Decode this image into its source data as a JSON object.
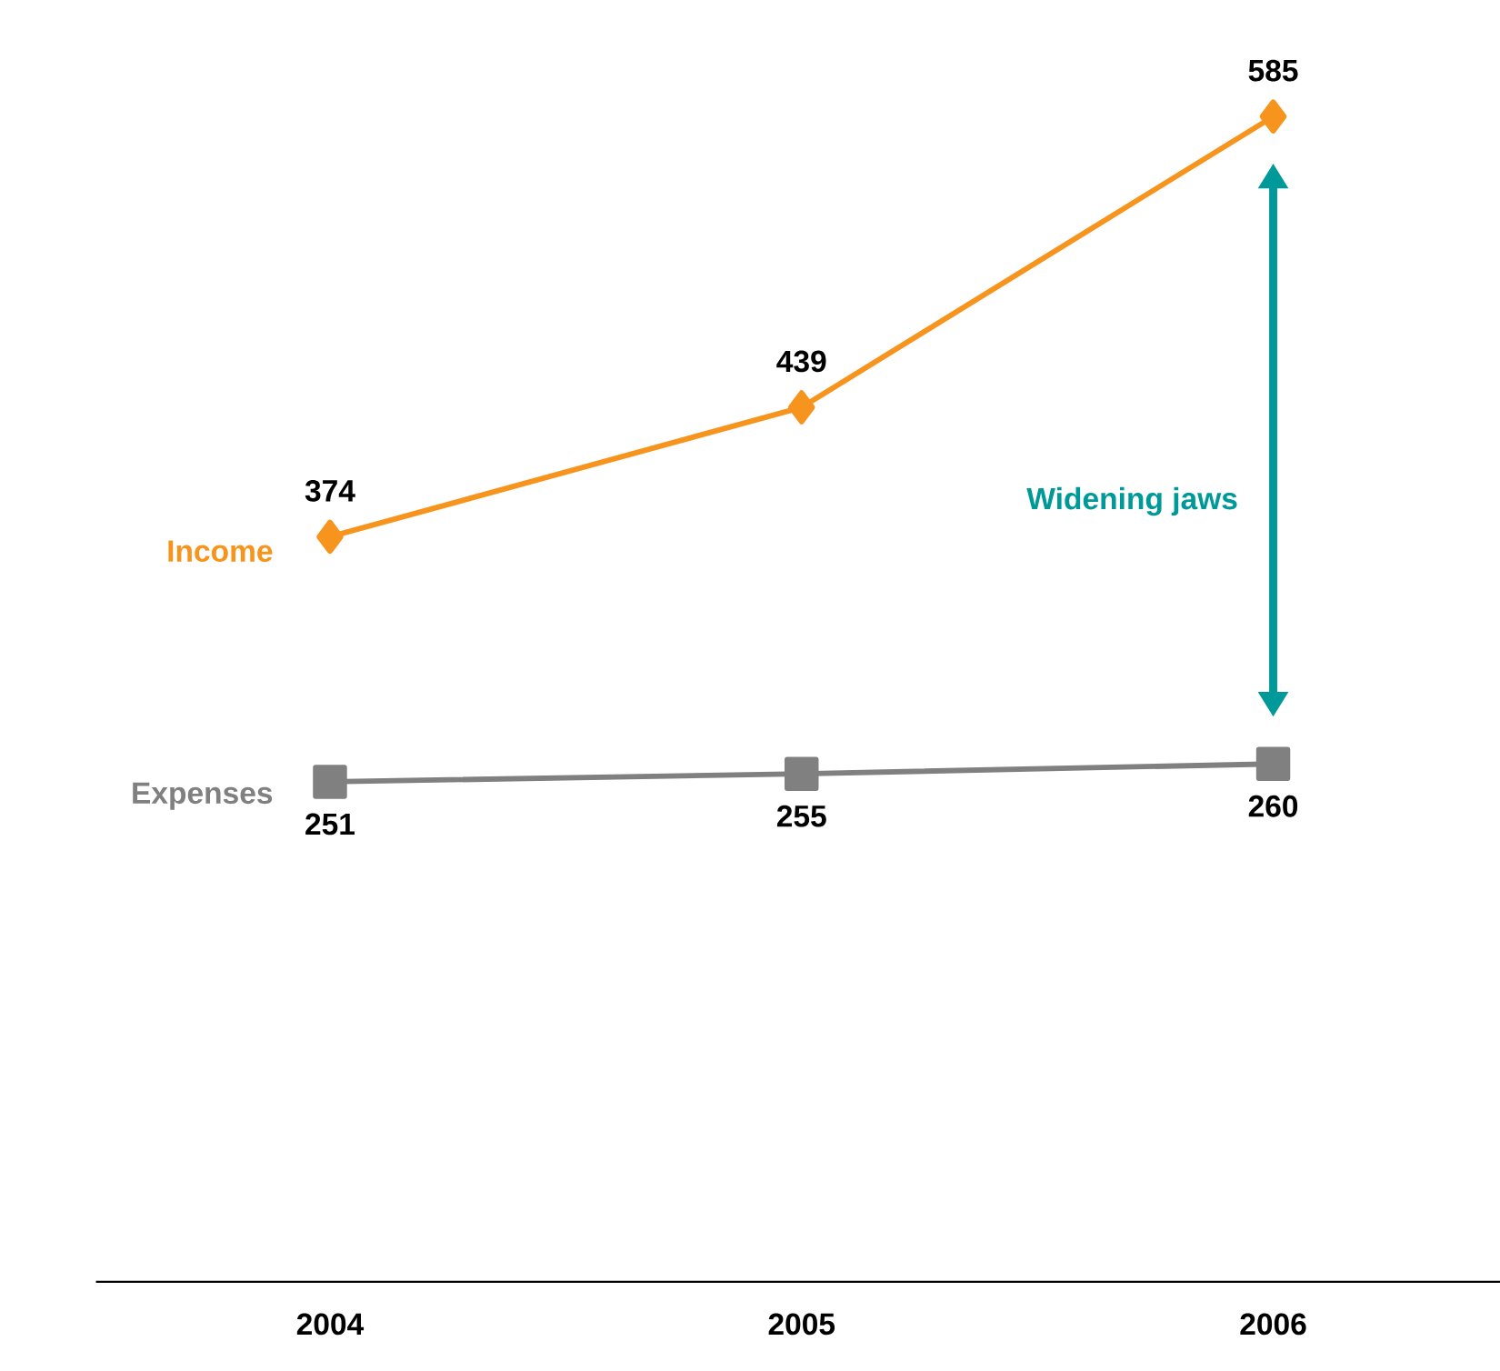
{
  "chart_data": {
    "type": "line",
    "categories": [
      "2004",
      "2005",
      "2006"
    ],
    "series": [
      {
        "name": "Income",
        "color": "#f7941d",
        "marker": "diamond",
        "values": [
          374,
          439,
          585
        ]
      },
      {
        "name": "Expenses",
        "color": "#808080",
        "marker": "square",
        "values": [
          251,
          255,
          260
        ]
      }
    ],
    "tick_labels": "x",
    "data_labels": true,
    "legend": false,
    "grid": false,
    "annotations": [
      "Widening jaws"
    ]
  }
}
